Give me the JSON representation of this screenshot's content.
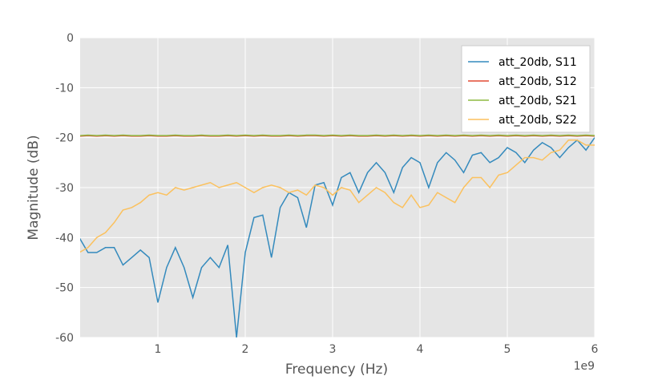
{
  "chart_data": {
    "type": "line",
    "x_label": "Frequency (Hz)",
    "y_label": "Magnitude (dB)",
    "x_offset_label": "1e9",
    "x": [
      0.1,
      0.2,
      0.3,
      0.4,
      0.5,
      0.6,
      0.7,
      0.8,
      0.9,
      1.0,
      1.1,
      1.2,
      1.3,
      1.4,
      1.5,
      1.6,
      1.7,
      1.8,
      1.9,
      2.0,
      2.1,
      2.2,
      2.3,
      2.4,
      2.5,
      2.6,
      2.7,
      2.8,
      2.9,
      3.0,
      3.1,
      3.2,
      3.3,
      3.4,
      3.5,
      3.6,
      3.7,
      3.8,
      3.9,
      4.0,
      4.1,
      4.2,
      4.3,
      4.4,
      4.5,
      4.6,
      4.7,
      4.8,
      4.9,
      5.0,
      5.1,
      5.2,
      5.3,
      5.4,
      5.5,
      5.6,
      5.7,
      5.8,
      5.9,
      6.0
    ],
    "series": [
      {
        "name": "att_20db, S11",
        "color": "#348ABD",
        "values": [
          -40,
          -43,
          -43,
          -42,
          -42,
          -45.5,
          -44,
          -42.5,
          -44,
          -53,
          -46,
          -42,
          -46,
          -52,
          -46,
          -44,
          -46,
          -41.5,
          -60,
          -43,
          -36,
          -35.5,
          -44,
          -34,
          -31,
          -32,
          -38,
          -29.5,
          -29,
          -33.5,
          -28,
          -27,
          -31,
          -27,
          -25,
          -27,
          -31,
          -26,
          -24,
          -25,
          -30,
          -25,
          -23,
          -24.5,
          -27,
          -23.5,
          -23,
          -25,
          -24,
          -22,
          -23,
          -25,
          -22.5,
          -21,
          -22,
          -24,
          -22,
          -20.5,
          -22.5,
          -20
        ]
      },
      {
        "name": "att_20db, S12",
        "color": "#E24A33",
        "values": [
          -19.7,
          -19.6,
          -19.7,
          -19.6,
          -19.7,
          -19.6,
          -19.7,
          -19.7,
          -19.6,
          -19.7,
          -19.7,
          -19.6,
          -19.7,
          -19.7,
          -19.6,
          -19.7,
          -19.7,
          -19.6,
          -19.7,
          -19.6,
          -19.7,
          -19.6,
          -19.7,
          -19.7,
          -19.6,
          -19.7,
          -19.6,
          -19.6,
          -19.7,
          -19.6,
          -19.7,
          -19.6,
          -19.7,
          -19.7,
          -19.6,
          -19.7,
          -19.6,
          -19.7,
          -19.6,
          -19.7,
          -19.6,
          -19.7,
          -19.6,
          -19.7,
          -19.6,
          -19.7,
          -19.6,
          -19.7,
          -19.6,
          -19.7,
          -19.6,
          -19.7,
          -19.6,
          -19.7,
          -19.6,
          -19.7,
          -19.6,
          -19.7,
          -19.6,
          -19.7
        ]
      },
      {
        "name": "att_20db, S21",
        "color": "#8EBA42",
        "values": [
          -19.6,
          -19.5,
          -19.6,
          -19.5,
          -19.6,
          -19.5,
          -19.6,
          -19.6,
          -19.5,
          -19.6,
          -19.6,
          -19.5,
          -19.6,
          -19.6,
          -19.5,
          -19.6,
          -19.6,
          -19.5,
          -19.6,
          -19.5,
          -19.6,
          -19.5,
          -19.6,
          -19.6,
          -19.5,
          -19.6,
          -19.5,
          -19.5,
          -19.6,
          -19.5,
          -19.6,
          -19.5,
          -19.6,
          -19.6,
          -19.5,
          -19.6,
          -19.5,
          -19.6,
          -19.5,
          -19.6,
          -19.5,
          -19.6,
          -19.5,
          -19.6,
          -19.5,
          -19.6,
          -19.5,
          -19.6,
          -19.5,
          -19.6,
          -19.5,
          -19.6,
          -19.5,
          -19.6,
          -19.5,
          -19.6,
          -19.5,
          -19.6,
          -19.5,
          -19.6
        ]
      },
      {
        "name": "att_20db, S22",
        "color": "#FBC15E",
        "values": [
          -43,
          -42,
          -40,
          -39,
          -37,
          -34.5,
          -34,
          -33,
          -31.5,
          -31,
          -31.5,
          -30,
          -30.5,
          -30,
          -29.5,
          -29,
          -30,
          -29.5,
          -29,
          -30,
          -31,
          -30,
          -29.5,
          -30,
          -31,
          -30.5,
          -31.5,
          -29.5,
          -30,
          -31.5,
          -30,
          -30.5,
          -33,
          -31.5,
          -30,
          -31,
          -33,
          -34,
          -31.5,
          -34,
          -33.5,
          -31,
          -32,
          -33,
          -30,
          -28,
          -28,
          -30,
          -27.5,
          -27,
          -25.5,
          -24,
          -24,
          -24.5,
          -23,
          -22.5,
          -20.5,
          -20.5,
          -21.5,
          -21.5
        ]
      }
    ],
    "xlim": [
      0.11,
      6
    ],
    "xticks": [
      1,
      2,
      3,
      4,
      5,
      6
    ],
    "ylim": [
      -60,
      0
    ],
    "yticks": [
      -60,
      -50,
      -40,
      -30,
      -20,
      -10,
      0
    ],
    "grid": true,
    "legend": "upper right",
    "background": "#E5E5E5"
  }
}
